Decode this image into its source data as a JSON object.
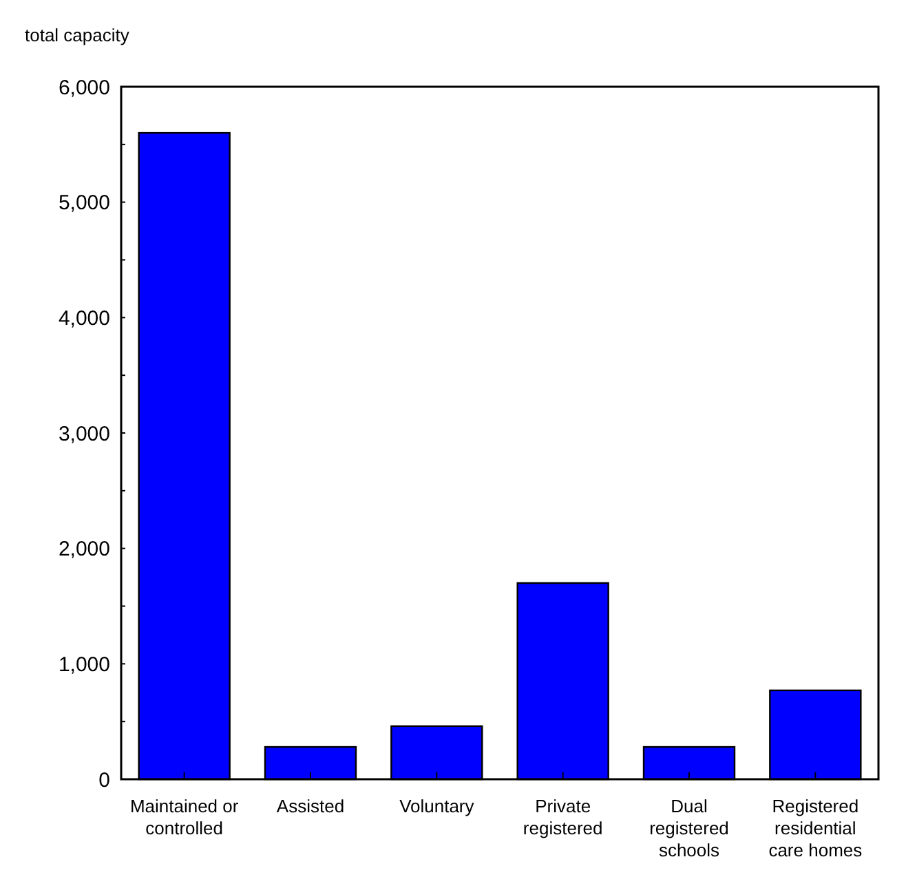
{
  "chart_data": {
    "type": "bar",
    "ylabel": "total capacity",
    "categories": [
      "Maintained or controlled",
      "Assisted",
      "Voluntary",
      "Private registered",
      "Dual registered schools",
      "Registered residential care homes"
    ],
    "values": [
      5600,
      280,
      460,
      1700,
      280,
      770
    ],
    "color": "#0000ff",
    "ylim": [
      0,
      6000
    ],
    "yticks": [
      0,
      {
        "value": 500,
        "label": null
      },
      "1,000",
      {
        "value": 1500,
        "label": null
      },
      {
        "value": 2000,
        "label": "2,000"
      },
      {
        "value": 2500,
        "label": null
      },
      {
        "value": 3000,
        "label": "3,000"
      },
      {
        "value": 3500,
        "label": null
      },
      {
        "value": 4000,
        "label": "4,000"
      },
      {
        "value": 4500,
        "label": null
      },
      {
        "value": 5000,
        "label": "5,000"
      },
      {
        "value": 5500,
        "label": null
      },
      {
        "value": 6000,
        "label": "6,000"
      }
    ],
    "grid": false
  }
}
